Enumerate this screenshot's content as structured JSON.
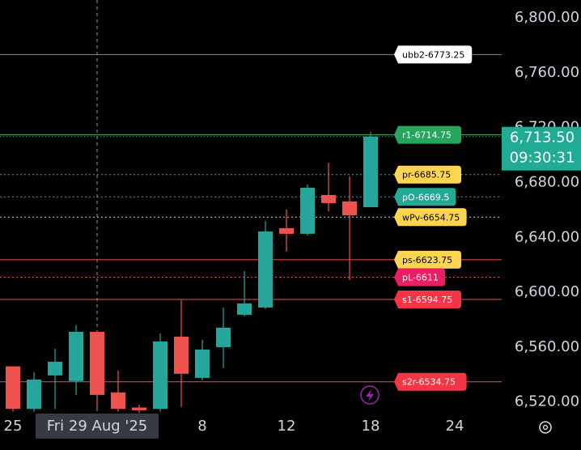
{
  "chart_data": {
    "type": "candlestick",
    "categories": [
      "25",
      null,
      null,
      null,
      "Fri 29 Aug '25",
      null,
      null,
      null,
      null,
      "8",
      null,
      null,
      null,
      "12",
      null,
      null,
      null,
      "18",
      null,
      null,
      null,
      "24"
    ],
    "crosshair_category": "Fri 29 Aug '25",
    "open": [
      6546,
      6515,
      6539.4,
      6535.3,
      6571.2,
      6527,
      6516,
      6515,
      6567.7,
      6537.6,
      6560,
      6583.6,
      6588.9,
      6646.7,
      6642.6,
      6670.9,
      6666.2,
      6662,
      null,
      null,
      null,
      null
    ],
    "high": [
      6546,
      6541.8,
      6558.8,
      6576,
      6572,
      6543,
      6518,
      6570,
      6594.2,
      6565.3,
      6588.9,
      6615.4,
      6652,
      6660.3,
      6678.5,
      6694.5,
      6684.4,
      6716.9,
      null,
      null,
      null,
      null
    ],
    "low": [
      6513,
      6513,
      6515,
      6525.2,
      6515,
      6513,
      6512,
      6513,
      6516.4,
      6535.8,
      6544.7,
      6582.4,
      6587.7,
      6629.6,
      6641.4,
      6659,
      6609,
      6662,
      null,
      null,
      null,
      null
    ],
    "close": [
      6515,
      6536.4,
      6549.4,
      6571.2,
      6525.2,
      6515,
      6514,
      6564.2,
      6540.6,
      6558.3,
      6574.2,
      6591.9,
      6644.3,
      6642.6,
      6676.2,
      6665,
      6656.1,
      6713.5,
      null,
      null,
      null,
      null
    ],
    "up_color": "#26a69a",
    "down_color": "#ef5350",
    "ylim": [
      6511,
      6813
    ],
    "yticks": [
      {
        "value": 6520,
        "label": "6,520.00"
      },
      {
        "value": 6560,
        "label": "6,560.00"
      },
      {
        "value": 6600,
        "label": "6,600.00"
      },
      {
        "value": 6640,
        "label": "6,640.00"
      },
      {
        "value": 6680,
        "label": "6,680.00"
      },
      {
        "value": 6720,
        "label": "6,720.00"
      },
      {
        "value": 6760,
        "label": "6,760.00"
      },
      {
        "value": 6800,
        "label": "6,800.00"
      }
    ],
    "levels": [
      {
        "label": "ubb2-6773.25",
        "value": 6773.25,
        "color": "#4caf50",
        "label_color": "#ffffff",
        "text_color": "#000000",
        "line_style": "solid"
      },
      {
        "label": "r1-6714.75",
        "value": 6714.75,
        "color": "#4caf50",
        "label_color": "#26a65b",
        "text_color": "#ffffff",
        "line_style": "solid"
      },
      {
        "label": "pr-6685.75",
        "value": 6685.75,
        "color": "#4caf50",
        "label_color": "#ffd54f",
        "text_color": "#000000",
        "line_style": "dotted"
      },
      {
        "label": "pO-6669.5",
        "value": 6669.5,
        "color": "#26a69a",
        "label_color": "#22ab94",
        "text_color": "#ffffff",
        "line_style": "dotted"
      },
      {
        "label": "wPv-6654.75",
        "value": 6654.75,
        "color": "#d1d4dc",
        "label_color": "#ffd54f",
        "text_color": "#000000",
        "line_style": "dotted"
      },
      {
        "label": "ps-6623.75",
        "value": 6623.75,
        "color": "#ef5350",
        "label_color": "#ffd54f",
        "text_color": "#000000",
        "line_style": "solid"
      },
      {
        "label": "pL-6611",
        "value": 6611,
        "color": "#ef5350",
        "label_color": "#e91e63",
        "text_color": "#ffffff",
        "line_style": "dotted"
      },
      {
        "label": "s1-6594.75",
        "value": 6594.75,
        "color": "#ef5350",
        "label_color": "#f23645",
        "text_color": "#ffffff",
        "line_style": "solid"
      },
      {
        "label": "s2r-6534.75",
        "value": 6534.75,
        "color": "#ef5350",
        "label_color": "#f23645",
        "text_color": "#ffffff",
        "line_style": "solid"
      }
    ],
    "last_price": {
      "value": 6713.5,
      "label": "6,713.50",
      "countdown": "09:30:31",
      "color": "#22ab94"
    }
  }
}
